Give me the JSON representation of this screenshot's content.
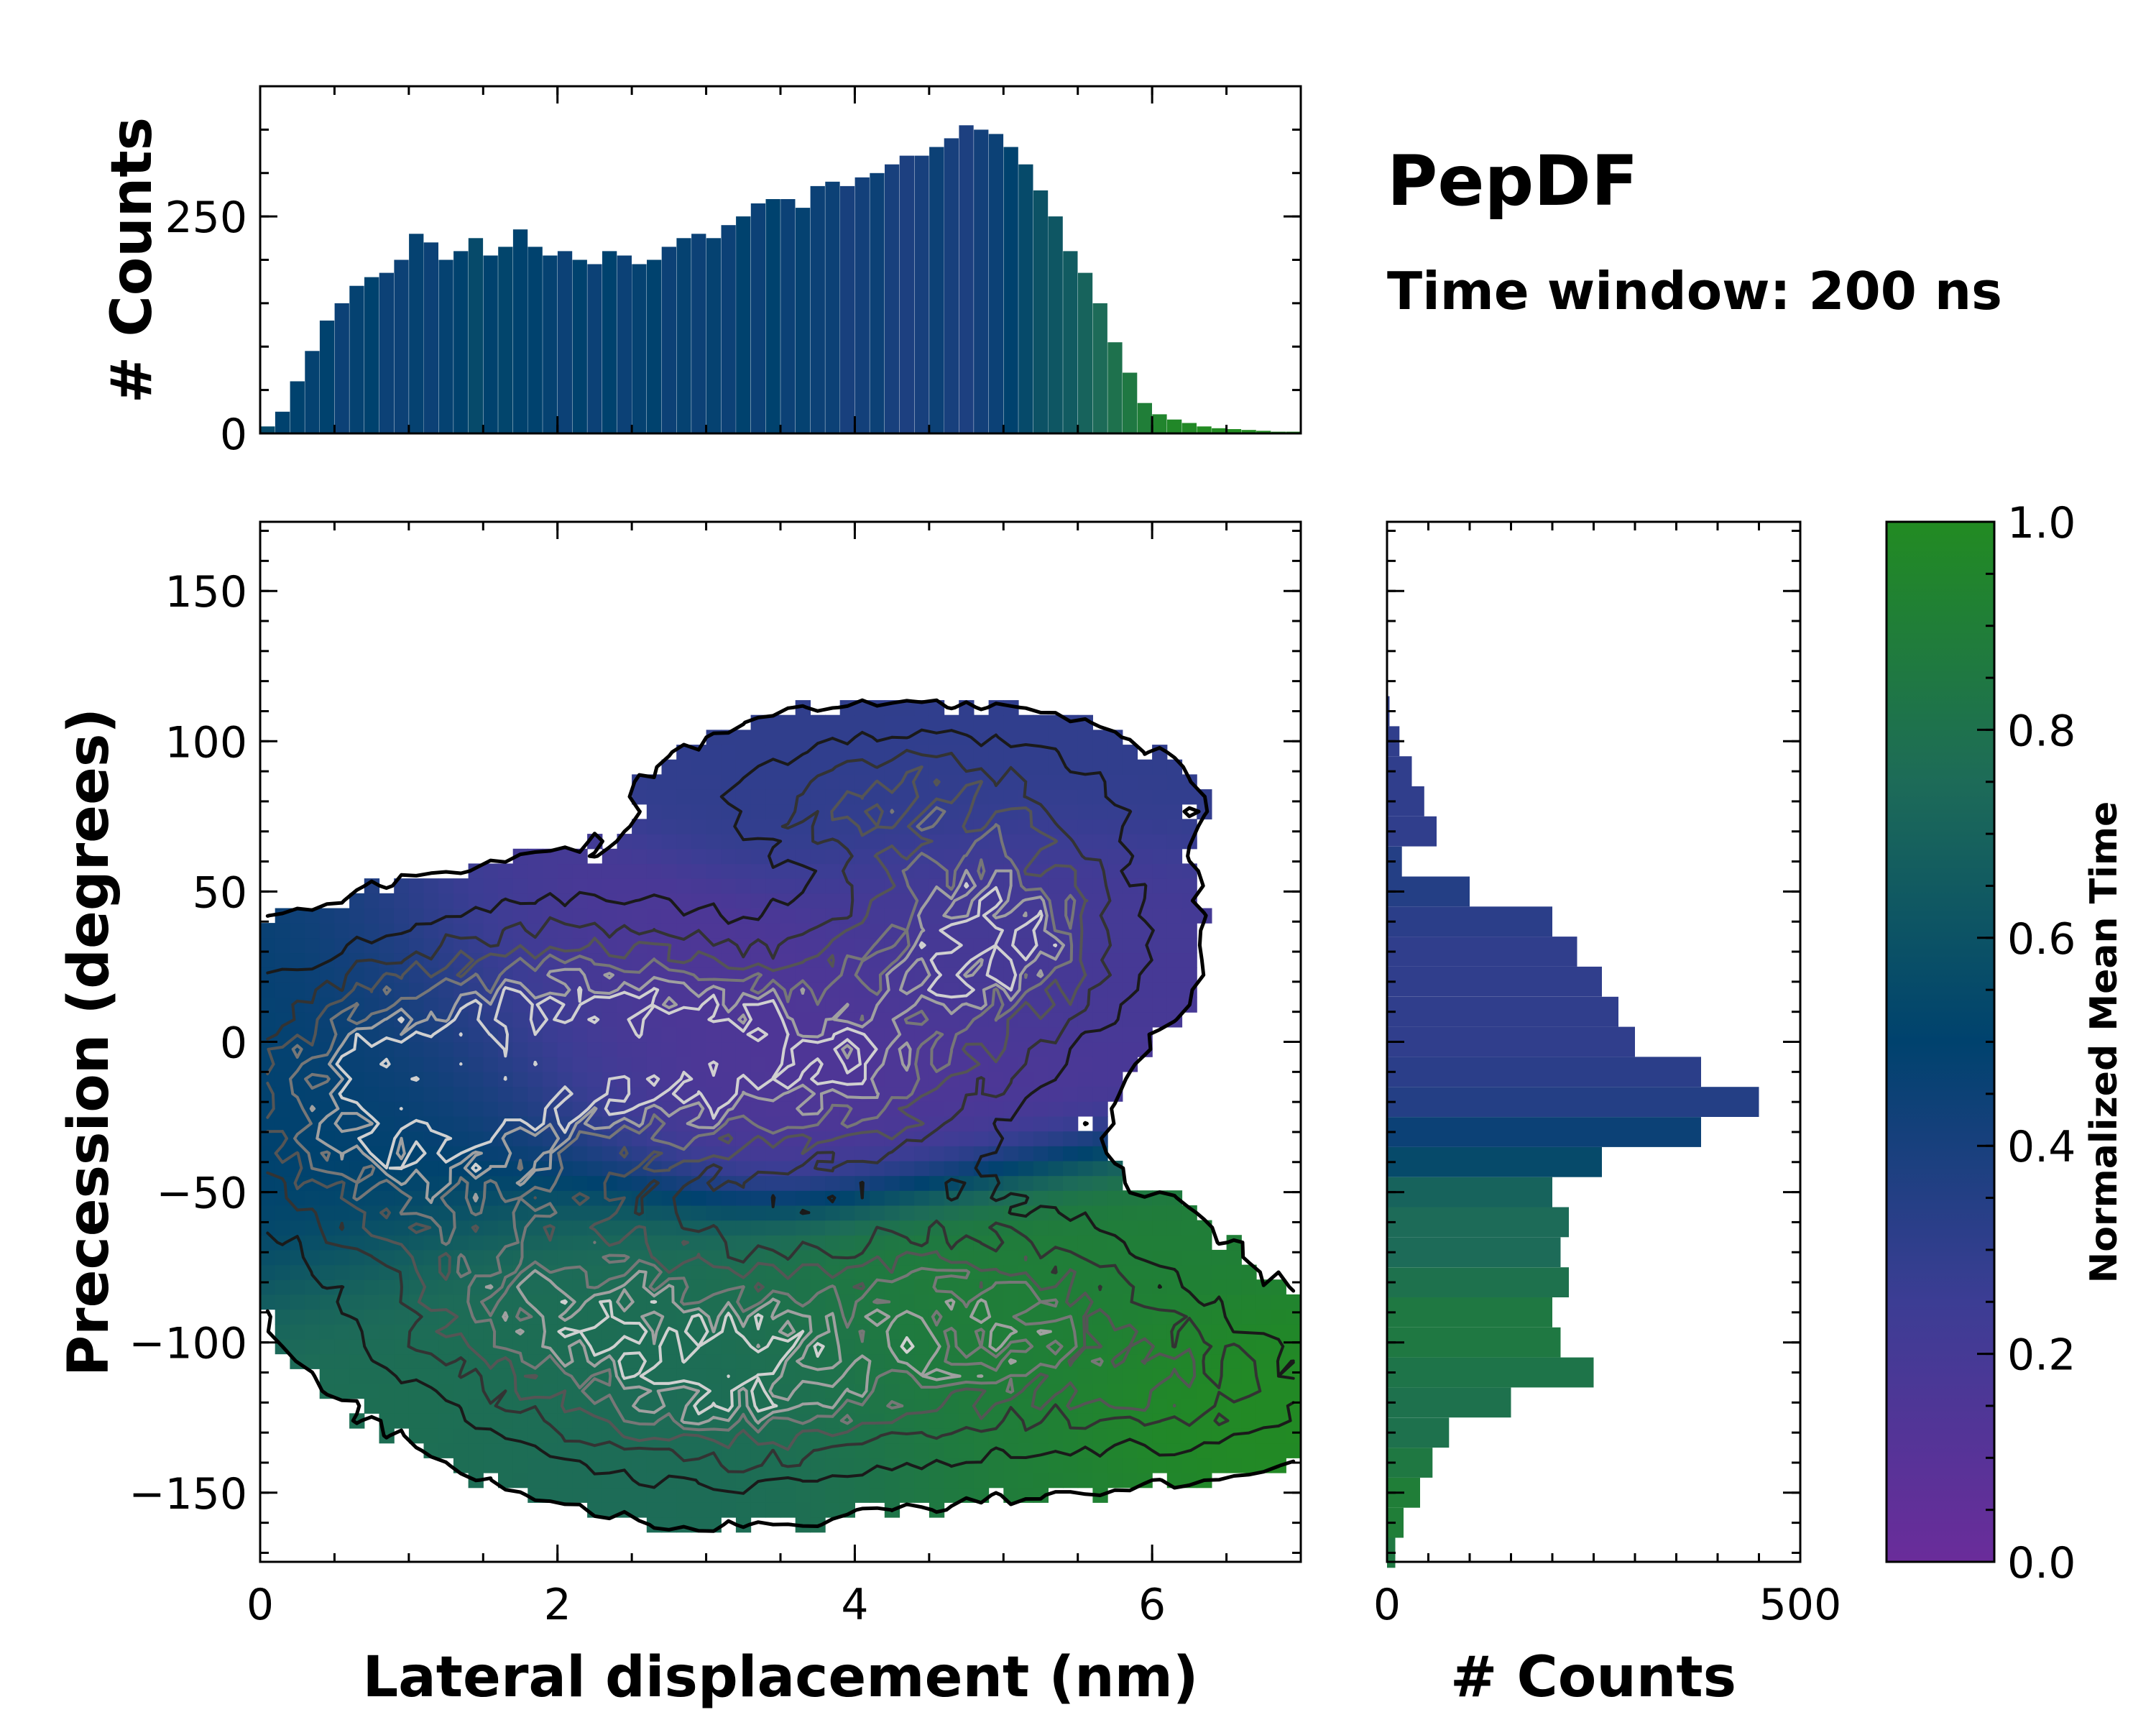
{
  "title": "PepDF",
  "subtitle": "Time window: 200 ns",
  "colormap": {
    "stops": [
      "#6a2c9a",
      "#3c3d94",
      "#00426e",
      "#1d6b58",
      "#228b22"
    ]
  },
  "chart_data": [
    {
      "id": "joint",
      "type": "heatmap",
      "xlabel": "Lateral displacement (nm)",
      "ylabel": "Precession (degrees)",
      "xlim": [
        0,
        7
      ],
      "ylim": [
        -173,
        173
      ],
      "xticks": [
        0,
        2,
        4,
        6
      ],
      "xtick_labels": [
        "0",
        "2",
        "4",
        "6"
      ],
      "yticks": [
        -150,
        -100,
        -50,
        0,
        50,
        100,
        150
      ],
      "ytick_labels": [
        "−150",
        "−100",
        "−50",
        "0",
        "50",
        "100",
        "150"
      ],
      "clusters": [
        {
          "x": 1.0,
          "y": -20,
          "sx": 0.8,
          "sy": 28,
          "weight": 1.0,
          "color_value": 0.5
        },
        {
          "x": 2.2,
          "y": 5,
          "sx": 0.8,
          "sy": 25,
          "weight": 0.7,
          "color_value": 0.15
        },
        {
          "x": 3.6,
          "y": -8,
          "sx": 0.9,
          "sy": 22,
          "weight": 0.9,
          "color_value": 0.15
        },
        {
          "x": 4.9,
          "y": 35,
          "sx": 0.6,
          "sy": 20,
          "weight": 1.0,
          "color_value": 0.2
        },
        {
          "x": 4.4,
          "y": 80,
          "sx": 0.9,
          "sy": 16,
          "weight": 0.5,
          "color_value": 0.3
        },
        {
          "x": 1.9,
          "y": -85,
          "sx": 0.8,
          "sy": 25,
          "weight": 0.6,
          "color_value": 0.78
        },
        {
          "x": 3.1,
          "y": -110,
          "sx": 0.8,
          "sy": 22,
          "weight": 0.8,
          "color_value": 0.75
        },
        {
          "x": 4.8,
          "y": -95,
          "sx": 0.9,
          "sy": 25,
          "weight": 0.7,
          "color_value": 0.9
        },
        {
          "x": 6.3,
          "y": -115,
          "sx": 0.6,
          "sy": 15,
          "weight": 0.35,
          "color_value": 1.0
        }
      ]
    },
    {
      "id": "top",
      "type": "bar",
      "ylabel": "# Counts",
      "xlim": [
        0,
        7
      ],
      "ylim": [
        0,
        400
      ],
      "yticks": [
        0,
        250
      ],
      "ytick_labels": [
        "0",
        "250"
      ],
      "x": [
        0.05,
        0.15,
        0.25,
        0.35,
        0.45,
        0.55,
        0.65,
        0.75,
        0.85,
        0.95,
        1.05,
        1.15,
        1.25,
        1.35,
        1.45,
        1.55,
        1.65,
        1.75,
        1.85,
        1.95,
        2.05,
        2.15,
        2.25,
        2.35,
        2.45,
        2.55,
        2.65,
        2.75,
        2.85,
        2.95,
        3.05,
        3.15,
        3.25,
        3.35,
        3.45,
        3.55,
        3.65,
        3.75,
        3.85,
        3.95,
        4.05,
        4.15,
        4.25,
        4.35,
        4.45,
        4.55,
        4.65,
        4.75,
        4.85,
        4.95,
        5.05,
        5.15,
        5.25,
        5.35,
        5.45,
        5.55,
        5.65,
        5.75,
        5.85,
        5.95,
        6.05,
        6.15,
        6.25,
        6.35,
        6.45,
        6.55,
        6.65,
        6.75,
        6.85,
        6.95
      ],
      "values": [
        8,
        25,
        60,
        95,
        130,
        150,
        170,
        180,
        185,
        200,
        230,
        220,
        200,
        210,
        225,
        205,
        215,
        235,
        215,
        205,
        210,
        200,
        195,
        210,
        205,
        195,
        200,
        215,
        225,
        230,
        225,
        240,
        250,
        265,
        270,
        270,
        260,
        285,
        290,
        285,
        295,
        300,
        310,
        320,
        320,
        330,
        340,
        355,
        350,
        345,
        330,
        310,
        280,
        250,
        210,
        185,
        150,
        105,
        70,
        35,
        22,
        16,
        12,
        8,
        6,
        5,
        4,
        3,
        2,
        2
      ],
      "color_values": [
        0.55,
        0.5,
        0.5,
        0.48,
        0.5,
        0.45,
        0.48,
        0.5,
        0.45,
        0.45,
        0.48,
        0.45,
        0.48,
        0.5,
        0.55,
        0.5,
        0.52,
        0.5,
        0.5,
        0.48,
        0.45,
        0.5,
        0.45,
        0.5,
        0.45,
        0.48,
        0.5,
        0.45,
        0.48,
        0.45,
        0.48,
        0.45,
        0.5,
        0.45,
        0.5,
        0.45,
        0.48,
        0.45,
        0.45,
        0.4,
        0.42,
        0.45,
        0.4,
        0.38,
        0.4,
        0.45,
        0.4,
        0.38,
        0.42,
        0.45,
        0.5,
        0.55,
        0.6,
        0.62,
        0.65,
        0.7,
        0.75,
        0.8,
        0.85,
        0.9,
        0.95,
        0.97,
        0.98,
        1.0,
        1.0,
        1.0,
        1.0,
        1.0,
        1.0,
        1.0
      ]
    },
    {
      "id": "right",
      "type": "bar",
      "orientation": "horizontal",
      "xlabel": "# Counts",
      "xlim": [
        0,
        500
      ],
      "ylim": [
        -173,
        173
      ],
      "xticks": [
        0,
        500
      ],
      "xtick_labels": [
        "0",
        "500"
      ],
      "y": [
        -170,
        -160,
        -150,
        -140,
        -130,
        -120,
        -110,
        -100,
        -90,
        -80,
        -70,
        -60,
        -50,
        -40,
        -30,
        -20,
        -10,
        0,
        10,
        20,
        30,
        40,
        50,
        60,
        70,
        80,
        90,
        100,
        110
      ],
      "values": [
        10,
        20,
        40,
        55,
        75,
        150,
        250,
        210,
        200,
        220,
        210,
        220,
        200,
        260,
        380,
        450,
        380,
        300,
        280,
        260,
        230,
        200,
        100,
        18,
        60,
        45,
        30,
        15,
        3
      ],
      "color_values": [
        0.85,
        0.9,
        0.9,
        0.85,
        0.8,
        0.8,
        0.82,
        0.85,
        0.85,
        0.8,
        0.75,
        0.75,
        0.7,
        0.55,
        0.45,
        0.35,
        0.32,
        0.3,
        0.3,
        0.3,
        0.3,
        0.32,
        0.35,
        0.35,
        0.3,
        0.3,
        0.3,
        0.3,
        0.3
      ]
    },
    {
      "id": "colorbar",
      "type": "colorbar",
      "label": "Normalized Mean Time",
      "ylim": [
        0,
        1
      ],
      "yticks": [
        0,
        0.2,
        0.4,
        0.6,
        0.8,
        1.0
      ],
      "ytick_labels": [
        "0.0",
        "0.2",
        "0.4",
        "0.6",
        "0.8",
        "1.0"
      ]
    }
  ]
}
